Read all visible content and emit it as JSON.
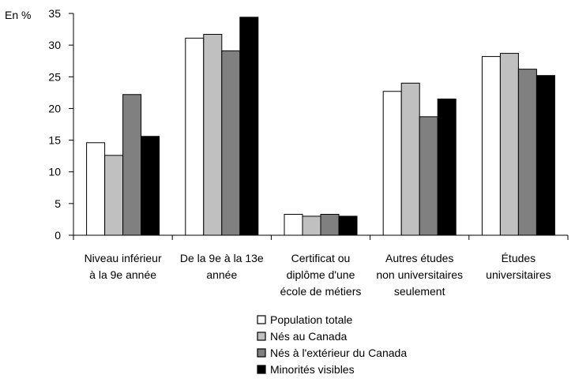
{
  "chart_data": {
    "type": "bar",
    "ylabel": "En %",
    "ylim": [
      0,
      35
    ],
    "yticks": [
      0,
      5,
      10,
      15,
      20,
      25,
      30,
      35
    ],
    "grid": false,
    "legend_position": "bottom",
    "categories": [
      [
        "Niveau inférieur",
        "à la 9e année"
      ],
      [
        "De la 9e à la 13e",
        "année"
      ],
      [
        "Certificat ou",
        "diplôme d'une",
        "école de métiers"
      ],
      [
        "Autres études",
        "non universitaires",
        "seulement"
      ],
      [
        "Études",
        "universitaires"
      ]
    ],
    "series": [
      {
        "name": "Population totale",
        "color": "#ffffff",
        "values": [
          14.6,
          31.1,
          3.3,
          22.7,
          28.2
        ]
      },
      {
        "name": "Nés au Canada",
        "color": "#c0c0c0",
        "values": [
          12.6,
          31.7,
          3.0,
          24.0,
          28.7
        ]
      },
      {
        "name": "Nés à l'extérieur du Canada",
        "color": "#808080",
        "values": [
          22.2,
          29.1,
          3.3,
          18.7,
          26.2
        ]
      },
      {
        "name": "Minorités visibles",
        "color": "#000000",
        "values": [
          15.6,
          34.4,
          3.0,
          21.5,
          25.2
        ]
      }
    ]
  }
}
